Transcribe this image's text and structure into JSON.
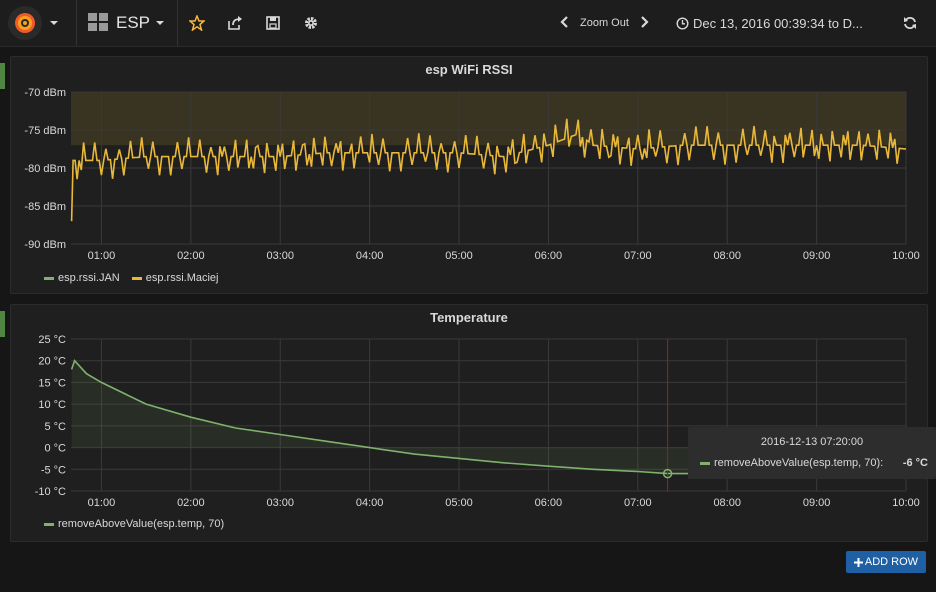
{
  "header": {
    "dashboard_title": "ESP",
    "zoom_out_label": "Zoom Out",
    "time_range": "Dec 13, 2016 00:39:34 to D..."
  },
  "icons": {
    "logo": "grafana-logo-icon",
    "dashboard": "dashboard-grid-icon",
    "star": "star-icon",
    "share": "share-icon",
    "save": "save-icon",
    "settings": "gear-icon",
    "prev": "chevron-left-icon",
    "next": "chevron-right-icon",
    "clock": "clock-icon",
    "refresh": "refresh-icon"
  },
  "colors": {
    "series_green": "#7eb26d",
    "series_yellow": "#eab839",
    "accent_button": "#1f60a5"
  },
  "panels": [
    {
      "title": "esp WiFi RSSI",
      "legend": [
        "esp.rssi.JAN",
        "esp.rssi.Maciej"
      ]
    },
    {
      "title": "Temperature",
      "legend": [
        "removeAboveValue(esp.temp, 70)"
      ]
    }
  ],
  "tooltip": {
    "time": "2016-12-13 07:20:00",
    "series": "removeAboveValue(esp.temp, 70):",
    "value": "-6 °C"
  },
  "add_row_label": "ADD ROW",
  "chart_data": [
    {
      "type": "line",
      "title": "esp WiFi RSSI",
      "x_ticks": [
        "01:00",
        "02:00",
        "03:00",
        "04:00",
        "05:00",
        "06:00",
        "07:00",
        "08:00",
        "09:00",
        "10:00"
      ],
      "y_ticks": [
        "-70 dBm",
        "-75 dBm",
        "-80 dBm",
        "-85 dBm",
        "-90 dBm"
      ],
      "ylim": [
        -90,
        -70
      ],
      "threshold_band": [
        -77,
        -70
      ],
      "series": [
        {
          "name": "esp.rssi.JAN",
          "x": [],
          "y": []
        },
        {
          "name": "esp.rssi.Maciej",
          "x": [
            "00:40",
            "00:41",
            "00:45",
            "01:00",
            "01:30",
            "02:00",
            "02:30",
            "03:00",
            "03:30",
            "04:00",
            "04:30",
            "05:00",
            "05:30",
            "06:00",
            "06:20",
            "06:30",
            "07:00",
            "07:30",
            "08:00",
            "08:30",
            "09:00",
            "09:30",
            "10:00"
          ],
          "y": [
            -87,
            -79,
            -79,
            -79,
            -78.5,
            -78.5,
            -78.5,
            -78.5,
            -78,
            -78,
            -78,
            -78,
            -78.5,
            -77,
            -75.5,
            -77,
            -77.5,
            -77,
            -77,
            -77,
            -77,
            -77,
            -77.5
          ]
        }
      ]
    },
    {
      "type": "area",
      "title": "Temperature",
      "x_ticks": [
        "01:00",
        "02:00",
        "03:00",
        "04:00",
        "05:00",
        "06:00",
        "07:00",
        "08:00",
        "09:00",
        "10:00"
      ],
      "y_ticks": [
        "25 °C",
        "20 °C",
        "15 °C",
        "10 °C",
        "5 °C",
        "0 °C",
        "-5 °C",
        "-10 °C"
      ],
      "ylim": [
        -10,
        25
      ],
      "series": [
        {
          "name": "removeAboveValue(esp.temp, 70)",
          "x": [
            "00:40",
            "00:42",
            "00:50",
            "01:00",
            "01:30",
            "02:00",
            "02:30",
            "03:00",
            "03:30",
            "04:00",
            "04:30",
            "05:00",
            "05:30",
            "06:00",
            "06:30",
            "07:00",
            "07:20",
            "07:40"
          ],
          "y": [
            18,
            20,
            17,
            15,
            10,
            7,
            4.5,
            3,
            1.5,
            0,
            -1.5,
            -2.5,
            -3.5,
            -4.3,
            -5,
            -5.5,
            -6,
            -6
          ]
        }
      ]
    }
  ]
}
